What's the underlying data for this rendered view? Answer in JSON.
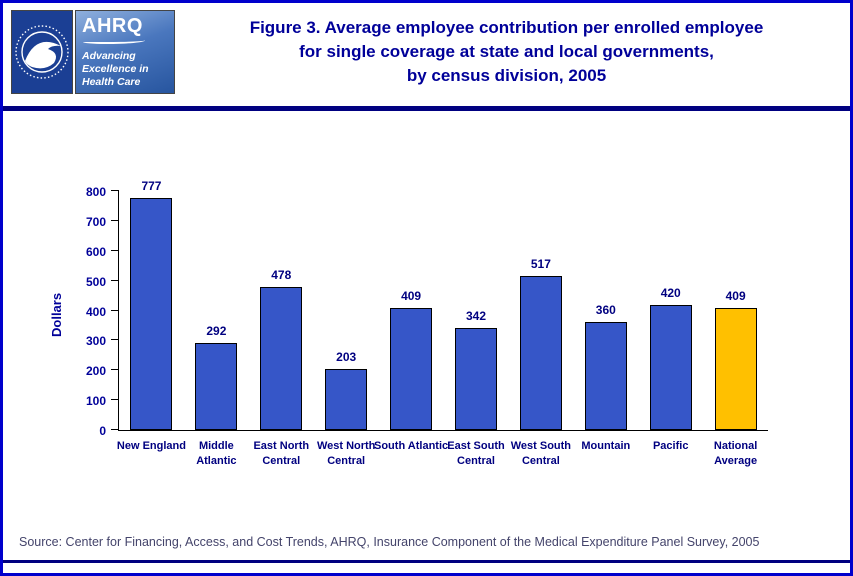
{
  "page": {
    "border_color": "#0000CC",
    "background": "#FFFFFF"
  },
  "header": {
    "logos": {
      "hhs_icon": "hhs-department-seal",
      "ahrq_name": "AHRQ",
      "ahrq_tagline_lines": [
        "Advancing",
        "Excellence in",
        "Health Care"
      ]
    },
    "title_lines": [
      "Figure 3. Average employee contribution per enrolled employee",
      "for single coverage at state and local governments,",
      "by census division, 2005"
    ],
    "title_color": "#000099",
    "rule_color": "#000080"
  },
  "chart_data": {
    "type": "bar",
    "title": "Figure 3. Average employee contribution per enrolled employee for single coverage at state and local governments, by census division, 2005",
    "categories": [
      "New England",
      "Middle Atlantic",
      "East North Central",
      "West North Central",
      "South Atlantic",
      "East South Central",
      "West South Central",
      "Mountain",
      "Pacific",
      "National Average"
    ],
    "values": [
      777,
      292,
      478,
      203,
      409,
      342,
      517,
      360,
      420,
      409
    ],
    "xlabel": "",
    "ylabel": "Dollars",
    "ylim": [
      0,
      800
    ],
    "ytick_interval": 100,
    "grid": false,
    "legend": false,
    "value_labels": true,
    "bar_color": "#3656C8",
    "highlight_color": "#FFC000",
    "highlight_index": 9
  },
  "footer": {
    "source": "Source: Center for Financing, Access, and Cost Trends, AHRQ, Insurance Component of the Medical Expenditure Panel Survey, 2005"
  }
}
